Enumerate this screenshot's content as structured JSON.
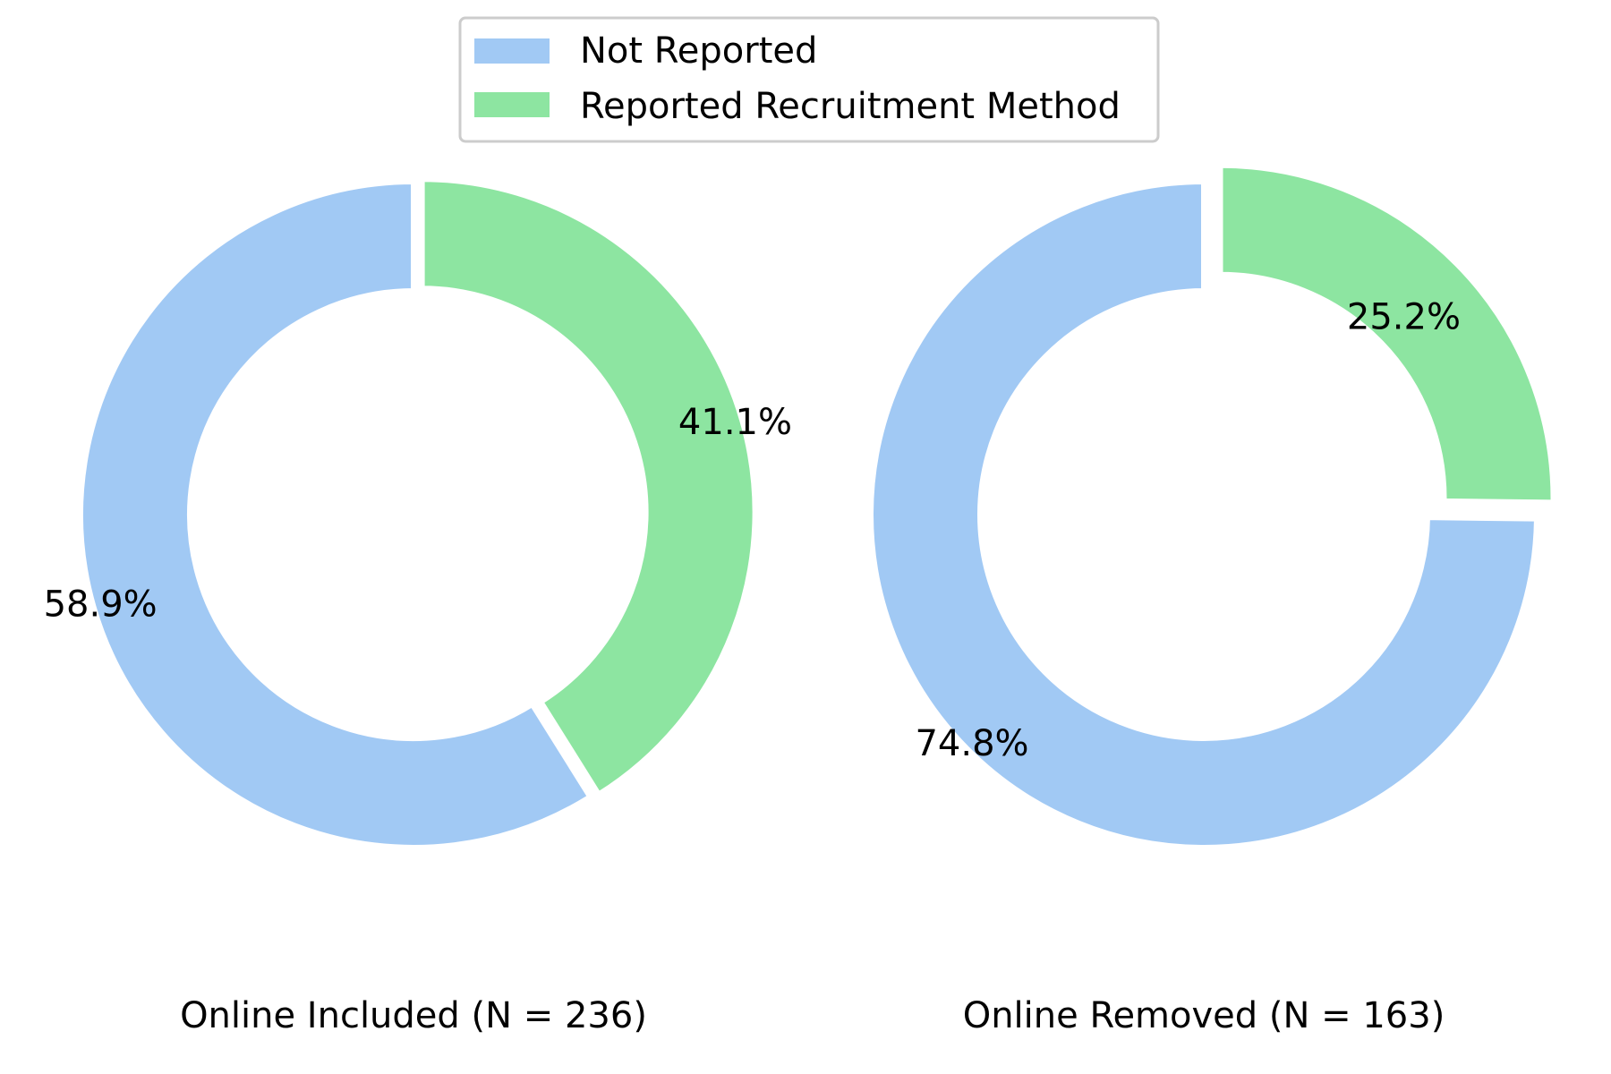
{
  "legend": {
    "placement": "top-center",
    "entries": [
      {
        "name": "Not Reported",
        "color": "#a1c9f4"
      },
      {
        "name": "Reported Recruitment Method",
        "color": "#8de5a1"
      }
    ]
  },
  "chart_data": [
    {
      "type": "pie",
      "style": "donut",
      "title": "Online Included (N = 236)",
      "labels": [
        "Not Reported",
        "Reported Recruitment Method"
      ],
      "values": [
        58.9,
        41.1
      ],
      "value_labels": [
        "58.9%",
        "41.1%"
      ],
      "colors": [
        "#a1c9f4",
        "#8de5a1"
      ],
      "start_angle_deg": 90,
      "counterclock": true
    },
    {
      "type": "pie",
      "style": "donut",
      "title": "Online Removed (N = 163)",
      "labels": [
        "Not Reported",
        "Reported Recruitment Method"
      ],
      "values": [
        74.8,
        25.2
      ],
      "value_labels": [
        "74.8%",
        "25.2%"
      ],
      "colors": [
        "#a1c9f4",
        "#8de5a1"
      ],
      "start_angle_deg": 90,
      "counterclock": true
    }
  ]
}
